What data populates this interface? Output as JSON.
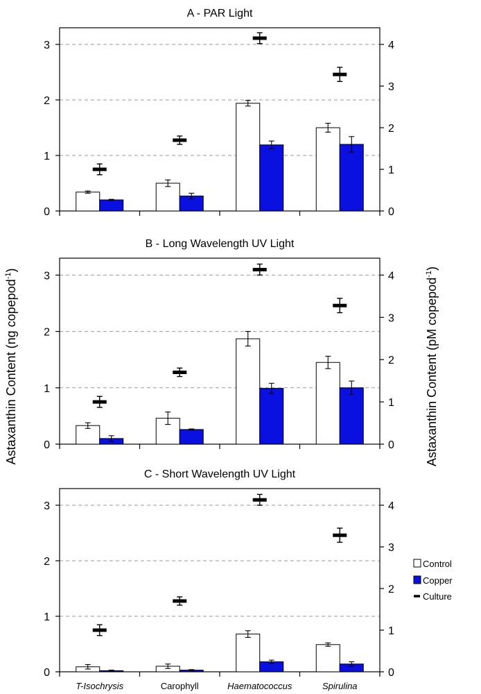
{
  "chart_data": {
    "type": "bar",
    "categories": [
      {
        "label": "T-Isochrysis",
        "italic": true
      },
      {
        "label": "Carophyll",
        "italic": false
      },
      {
        "label": "Haematococcus",
        "italic": true
      },
      {
        "label": "Spirulina",
        "italic": true
      }
    ],
    "ylabel_left_main": "Astaxanthin Content (ng copepod",
    "ylabel_left_sup": "-1",
    "ylabel_left_close": ")",
    "ylabel_right_main": "Astaxanthin Content (pM copepod",
    "ylabel_right_sup": "-1",
    "ylabel_right_close": ")",
    "ylim_left": [
      0,
      3.3
    ],
    "ylim_right": [
      0,
      4.4
    ],
    "left_ticks": [
      0,
      1,
      2,
      3
    ],
    "right_ticks": [
      0,
      1,
      2,
      3,
      4
    ],
    "gridlines": [
      1,
      2,
      3
    ],
    "legend": {
      "position": "right",
      "entries": [
        {
          "key": "control",
          "label": "Control"
        },
        {
          "key": "copper",
          "label": "Copper"
        },
        {
          "key": "culture",
          "label": "Culture"
        }
      ]
    },
    "colors": {
      "control": "#ffffff",
      "copper": "#0a10e0",
      "culture": "#000000",
      "grid": "#999999"
    },
    "panels": [
      {
        "title": "A - PAR Light",
        "series": [
          {
            "name": "Control",
            "values": [
              0.34,
              0.5,
              1.94,
              1.5
            ],
            "errors": [
              0.02,
              0.06,
              0.05,
              0.08
            ]
          },
          {
            "name": "Copper",
            "values": [
              0.2,
              0.27,
              1.19,
              1.2
            ],
            "errors": [
              0.01,
              0.05,
              0.07,
              0.14
            ]
          },
          {
            "name": "Culture",
            "axis": "right",
            "values": [
              1.0,
              1.7,
              4.15,
              3.28
            ],
            "errors": [
              0.13,
              0.1,
              0.13,
              0.17
            ]
          }
        ]
      },
      {
        "title": "B - Long Wavelength UV Light",
        "series": [
          {
            "name": "Control",
            "values": [
              0.33,
              0.46,
              1.87,
              1.45
            ],
            "errors": [
              0.05,
              0.11,
              0.13,
              0.11
            ]
          },
          {
            "name": "Copper",
            "values": [
              0.1,
              0.26,
              0.99,
              1.0
            ],
            "errors": [
              0.05,
              0.01,
              0.09,
              0.12
            ]
          },
          {
            "name": "Culture",
            "axis": "right",
            "values": [
              1.0,
              1.7,
              4.13,
              3.28
            ],
            "errors": [
              0.13,
              0.1,
              0.13,
              0.17
            ]
          }
        ]
      },
      {
        "title": "C - Short Wavelength UV Light",
        "series": [
          {
            "name": "Control",
            "values": [
              0.09,
              0.1,
              0.68,
              0.49
            ],
            "errors": [
              0.04,
              0.04,
              0.06,
              0.03
            ]
          },
          {
            "name": "Copper",
            "values": [
              0.02,
              0.03,
              0.18,
              0.14
            ],
            "errors": [
              0.01,
              0.01,
              0.03,
              0.04
            ]
          },
          {
            "name": "Culture",
            "axis": "right",
            "values": [
              1.0,
              1.7,
              4.13,
              3.28
            ],
            "errors": [
              0.13,
              0.1,
              0.13,
              0.17
            ]
          }
        ]
      }
    ]
  }
}
